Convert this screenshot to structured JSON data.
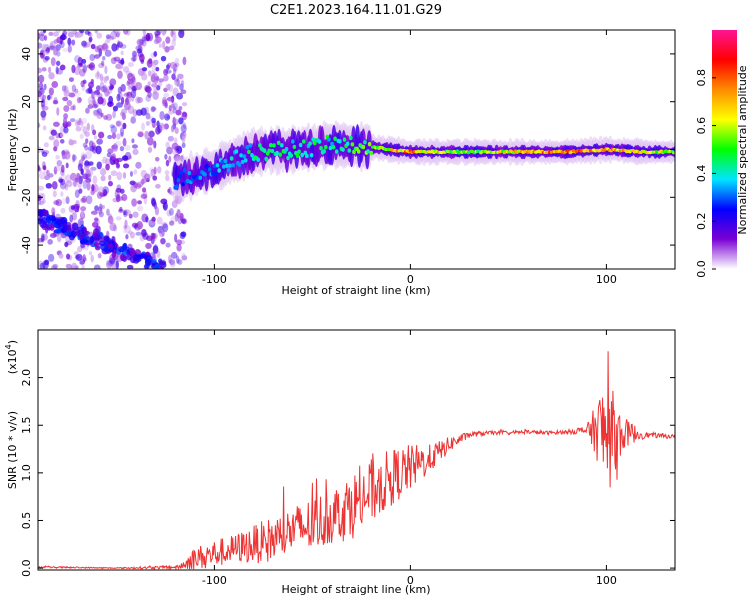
{
  "title": "C2E1.2023.164.11.01.G29",
  "chart_data": [
    {
      "type": "heatmap",
      "xlabel": "Height of straight line (km)",
      "ylabel": "Frequency (Hz)",
      "xlim": [
        -190,
        135
      ],
      "ylim": [
        -50,
        50
      ],
      "xticks": [
        -100,
        0,
        100
      ],
      "xtick_labels": [
        "-100",
        "0",
        "100"
      ],
      "yticks": [
        40,
        20,
        0,
        -20,
        -40
      ],
      "ytick_labels": [
        "40",
        "20",
        "0",
        "-20",
        "-40"
      ],
      "colorbar": {
        "label": "Normalized spectral amplitude",
        "range": [
          0,
          1
        ],
        "ticks": [
          0.0,
          0.2,
          0.4,
          0.6,
          0.8
        ],
        "tick_labels": [
          "0.0",
          "0.2",
          "0.4",
          "0.6",
          "0.8"
        ],
        "colormap": [
          "#ffffff",
          "#7b00d4",
          "#0000ff",
          "#00e5ff",
          "#00ff00",
          "#ffff00",
          "#ff8c00",
          "#ff0000",
          "#ff1493"
        ]
      },
      "features": {
        "noise_region": {
          "x": [
            -190,
            -115
          ],
          "y": [
            -50,
            50
          ],
          "amplitude": 0.12
        },
        "diagonal_trace": {
          "x": [
            -190,
            -125
          ],
          "y": [
            -28,
            -50
          ],
          "amplitude": 0.2
        },
        "signal_trace": {
          "x": [
            -120,
            -100,
            -80,
            -60,
            -40,
            -20,
            0,
            20,
            40,
            60,
            80,
            100,
            120,
            135
          ],
          "y": [
            -13,
            -8,
            -1,
            0,
            2,
            1,
            -1,
            -1,
            -1,
            -1,
            -1,
            0,
            -1,
            -1
          ],
          "amplitude": [
            0.3,
            0.35,
            0.45,
            0.45,
            0.45,
            0.55,
            0.8,
            0.55,
            0.6,
            0.75,
            0.85,
            0.75,
            0.7,
            0.55
          ]
        }
      },
      "grid": false
    },
    {
      "type": "line",
      "xlabel": "Height of straight line (km)",
      "ylabel": "SNR (10 * v/v)",
      "y_multiplier_label": "(x10",
      "y_multiplier_exponent": "4",
      "xlim": [
        -190,
        135
      ],
      "ylim": [
        -0.02,
        2.5
      ],
      "xticks": [
        -100,
        0,
        100
      ],
      "xtick_labels": [
        "-100",
        "0",
        "100"
      ],
      "yticks": [
        0.0,
        0.5,
        1.0,
        1.5,
        2.0
      ],
      "ytick_labels": [
        "0.0",
        "0.5",
        "1.0",
        "1.5",
        "2.0"
      ],
      "color": "#ee3333",
      "series": [
        {
          "x": [
            -190,
            -150,
            -118,
            -110,
            -100,
            -90,
            -80,
            -70,
            -60,
            -50,
            -40,
            -30,
            -20,
            -10,
            0,
            10,
            20,
            30,
            40,
            50,
            60,
            70,
            80,
            90,
            95,
            100,
            105,
            110,
            120,
            135
          ],
          "y": [
            0.01,
            0.0,
            0.01,
            0.1,
            0.15,
            0.2,
            0.25,
            0.3,
            0.4,
            0.45,
            0.55,
            0.65,
            0.8,
            0.95,
            1.05,
            1.15,
            1.3,
            1.4,
            1.42,
            1.42,
            1.43,
            1.42,
            1.43,
            1.45,
            1.45,
            1.4,
            1.4,
            1.42,
            1.4,
            1.38
          ],
          "variability": [
            0.01,
            0.005,
            0.02,
            0.12,
            0.15,
            0.15,
            0.2,
            0.25,
            0.25,
            0.3,
            0.3,
            0.35,
            0.35,
            0.3,
            0.25,
            0.15,
            0.08,
            0.03,
            0.02,
            0.02,
            0.02,
            0.02,
            0.02,
            0.05,
            0.3,
            0.7,
            0.35,
            0.15,
            0.03,
            0.02
          ]
        }
      ],
      "grid": false
    }
  ]
}
